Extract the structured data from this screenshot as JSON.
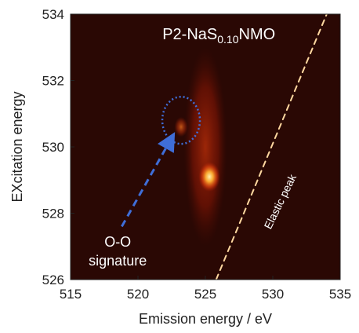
{
  "chart_data": {
    "type": "heatmap",
    "title": {
      "prefix": "P2-NaS",
      "subscript": "0.10",
      "suffix": "NMO"
    },
    "xlabel": "Emission energy / eV",
    "ylabel": "EXcitation energy",
    "xlim": [
      515,
      535
    ],
    "ylim": [
      526,
      534
    ],
    "xticks": [
      "515",
      "520",
      "525",
      "530",
      "535"
    ],
    "yticks": [
      "526",
      "528",
      "530",
      "532",
      "534"
    ],
    "grid": false,
    "legend": "none",
    "colormap": [
      "#1a0400",
      "#5a0d02",
      "#b81e05",
      "#f04a10",
      "#ffae30",
      "#fff2b0"
    ],
    "background_color": "#2a0804",
    "intensity_features": [
      {
        "feature": "main emission band",
        "x_center": 525.0,
        "y_center": 530.0,
        "x_halfwidth": 1.6,
        "y_halfwidth": 3.0,
        "intensity": 0.55
      },
      {
        "feature": "hot spot",
        "x_center": 525.3,
        "y_center": 529.1,
        "x_halfwidth": 0.8,
        "y_halfwidth": 0.45,
        "intensity": 1.0
      },
      {
        "feature": "O-O signature",
        "x_center": 523.2,
        "y_center": 530.6,
        "x_halfwidth": 0.5,
        "y_halfwidth": 0.3,
        "intensity": 0.5
      }
    ],
    "elastic_line": {
      "from": [
        525.8,
        526.0
      ],
      "to": [
        534.0,
        534.0
      ]
    },
    "annotations": [
      {
        "kind": "circle",
        "label": "O-O signature",
        "x": 523.2,
        "y": 530.8,
        "color": "#3f6ed8"
      },
      {
        "kind": "arrow",
        "from": [
          518.8,
          527.6
        ],
        "to": [
          522.4,
          530.2
        ],
        "color": "#3f6ed8"
      },
      {
        "kind": "text",
        "lines": [
          "O-O",
          "signature"
        ],
        "x": 518.5,
        "y": 527.0,
        "color": "#ffffff"
      },
      {
        "kind": "text",
        "text": "Elastic peak",
        "x": 530.8,
        "y": 528.3,
        "color": "#ffffff"
      }
    ]
  }
}
